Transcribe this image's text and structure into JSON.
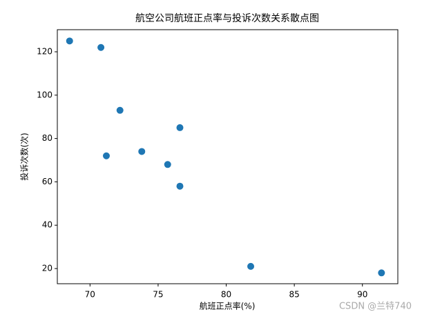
{
  "chart_data": {
    "type": "scatter",
    "title": "航空公司航班正点率与投诉次数关系散点图",
    "x_label": "航班正点率(%)",
    "y_label": "投诉次数(次)",
    "x": [
      68.5,
      70.8,
      72.2,
      71.2,
      73.8,
      75.7,
      76.6,
      76.6,
      81.8,
      91.4
    ],
    "values": [
      125,
      122,
      93,
      72,
      74,
      68,
      85,
      58,
      21,
      18
    ],
    "color": "#1f77b4",
    "xlim": [
      67.6,
      92.6
    ],
    "xticks": [
      70,
      75,
      80,
      85,
      90
    ],
    "ylim": [
      13,
      130.2
    ],
    "yticks": [
      20,
      40,
      60,
      80,
      100,
      120
    ]
  },
  "watermark": "CSDN @兰特740"
}
